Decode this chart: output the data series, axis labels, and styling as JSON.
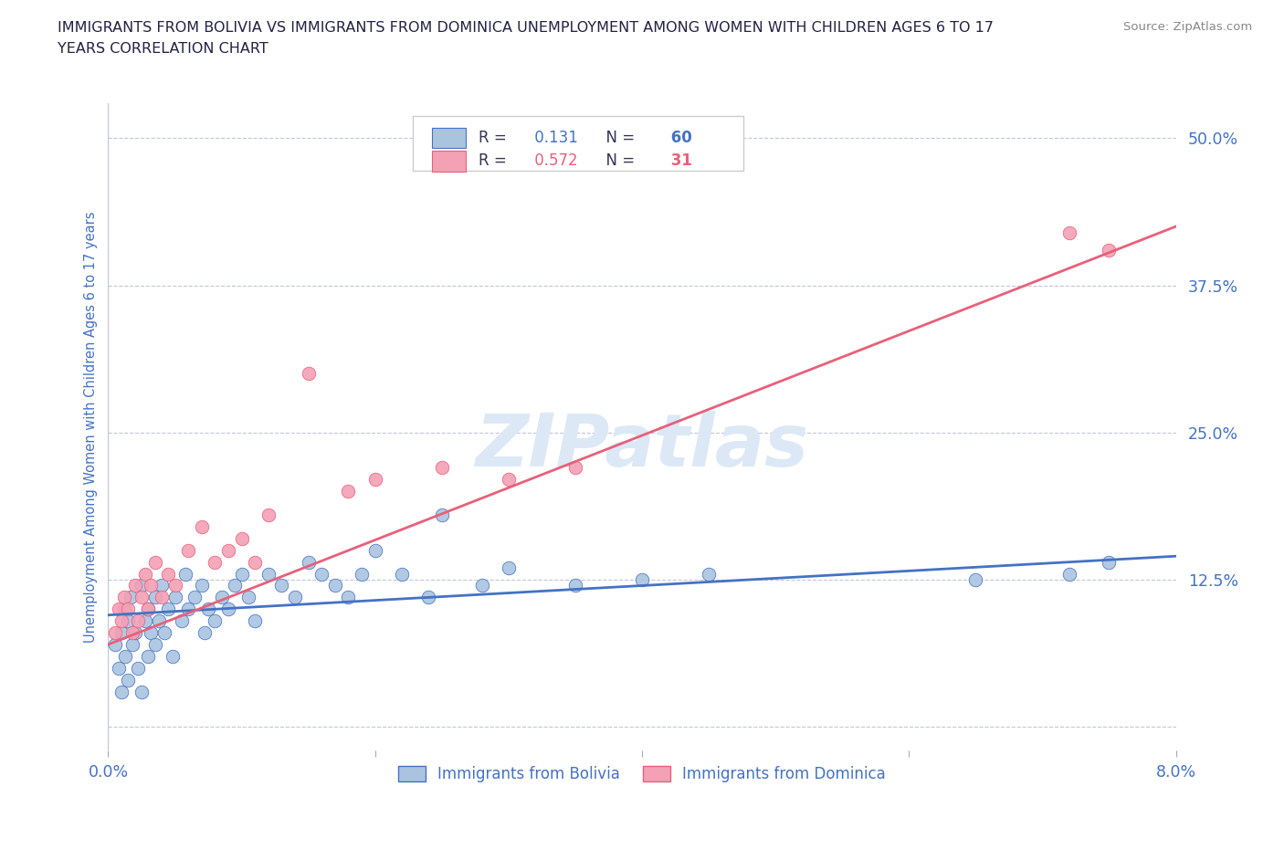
{
  "title_line1": "IMMIGRANTS FROM BOLIVIA VS IMMIGRANTS FROM DOMINICA UNEMPLOYMENT AMONG WOMEN WITH CHILDREN AGES 6 TO 17",
  "title_line2": "YEARS CORRELATION CHART",
  "source_text": "Source: ZipAtlas.com",
  "ylabel": "Unemployment Among Women with Children Ages 6 to 17 years",
  "xlim": [
    0.0,
    8.0
  ],
  "ylim": [
    -2.0,
    53.0
  ],
  "yticks": [
    0.0,
    12.5,
    25.0,
    37.5,
    50.0
  ],
  "ytick_labels": [
    "",
    "12.5%",
    "25.0%",
    "37.5%",
    "50.0%"
  ],
  "bolivia_color": "#aac4e0",
  "dominica_color": "#f4a0b5",
  "bolivia_line_color": "#4472c4",
  "dominica_line_color": "#e8607a",
  "axis_label_color": "#4472c4",
  "title_color": "#222244",
  "source_color": "#888888",
  "background_color": "#ffffff",
  "watermark_text": "ZIPatlas",
  "watermark_color": "#dce8f5",
  "R_bolivia": 0.131,
  "N_bolivia": 60,
  "R_dominica": 0.572,
  "N_dominica": 31,
  "bolivia_x": [
    0.05,
    0.08,
    0.1,
    0.1,
    0.12,
    0.13,
    0.15,
    0.15,
    0.17,
    0.18,
    0.2,
    0.22,
    0.25,
    0.25,
    0.28,
    0.3,
    0.3,
    0.32,
    0.35,
    0.35,
    0.38,
    0.4,
    0.42,
    0.45,
    0.48,
    0.5,
    0.55,
    0.58,
    0.6,
    0.65,
    0.7,
    0.72,
    0.75,
    0.8,
    0.85,
    0.9,
    0.95,
    1.0,
    1.05,
    1.1,
    1.2,
    1.3,
    1.4,
    1.5,
    1.6,
    1.7,
    1.8,
    1.9,
    2.0,
    2.2,
    2.4,
    2.5,
    2.8,
    3.0,
    3.5,
    4.0,
    4.5,
    6.5,
    7.2,
    7.5
  ],
  "bolivia_y": [
    7.0,
    5.0,
    8.0,
    3.0,
    10.0,
    6.0,
    9.0,
    4.0,
    11.0,
    7.0,
    8.0,
    5.0,
    12.0,
    3.0,
    9.0,
    10.0,
    6.0,
    8.0,
    11.0,
    7.0,
    9.0,
    12.0,
    8.0,
    10.0,
    6.0,
    11.0,
    9.0,
    13.0,
    10.0,
    11.0,
    12.0,
    8.0,
    10.0,
    9.0,
    11.0,
    10.0,
    12.0,
    13.0,
    11.0,
    9.0,
    13.0,
    12.0,
    11.0,
    14.0,
    13.0,
    12.0,
    11.0,
    13.0,
    15.0,
    13.0,
    11.0,
    18.0,
    12.0,
    13.5,
    12.0,
    12.5,
    13.0,
    12.5,
    13.0,
    14.0
  ],
  "dominica_x": [
    0.05,
    0.08,
    0.1,
    0.12,
    0.15,
    0.18,
    0.2,
    0.22,
    0.25,
    0.28,
    0.3,
    0.32,
    0.35,
    0.4,
    0.45,
    0.5,
    0.6,
    0.7,
    0.8,
    0.9,
    1.0,
    1.1,
    1.2,
    1.5,
    1.8,
    2.0,
    2.5,
    3.0,
    3.5,
    7.2,
    7.5
  ],
  "dominica_y": [
    8.0,
    10.0,
    9.0,
    11.0,
    10.0,
    8.0,
    12.0,
    9.0,
    11.0,
    13.0,
    10.0,
    12.0,
    14.0,
    11.0,
    13.0,
    12.0,
    15.0,
    17.0,
    14.0,
    15.0,
    16.0,
    14.0,
    18.0,
    30.0,
    20.0,
    21.0,
    22.0,
    21.0,
    22.0,
    42.0,
    40.5
  ],
  "trend_bolivia_x0": 0.0,
  "trend_bolivia_y0": 9.5,
  "trend_bolivia_x1": 8.0,
  "trend_bolivia_y1": 14.5,
  "trend_dominica_x0": 0.0,
  "trend_dominica_y0": 7.0,
  "trend_dominica_x1": 8.0,
  "trend_dominica_y1": 42.5
}
